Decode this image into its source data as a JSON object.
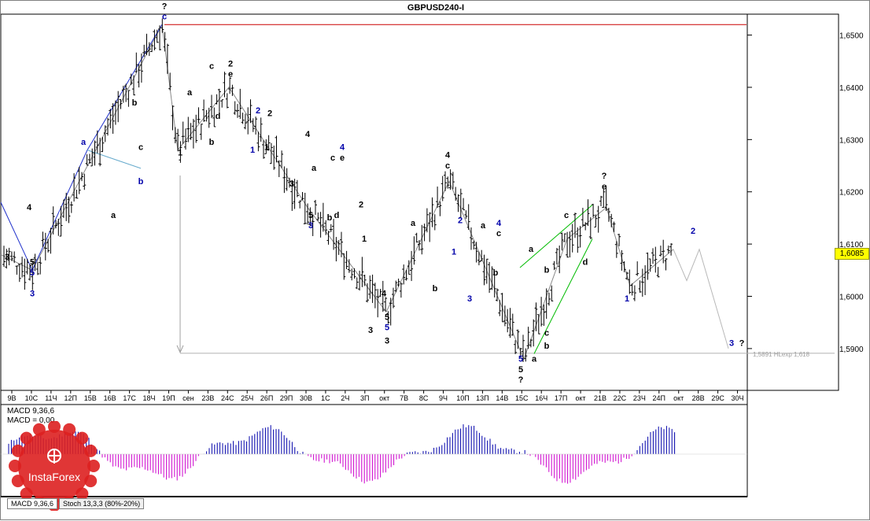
{
  "window": {
    "title": "GBPUSD240-I"
  },
  "current_price": "1,6085",
  "indicators": {
    "macd_line1": "MACD 9,36,6",
    "macd_line2": "MACD = 0,00"
  },
  "tabs": [
    {
      "label": "MACD 9,36,6",
      "active": true
    },
    {
      "label": "Stoch 13,3,3 (80%-20%)",
      "active": false
    }
  ],
  "logo": {
    "text": "InstaForex"
  },
  "colors": {
    "bullish": "#0000aa",
    "bearish": "#cc00cc",
    "resistance": "#cc0000",
    "trend": "#00bb00",
    "accent": "#2233cc"
  },
  "chart_data": {
    "type": "candlestick",
    "title": "GBPUSD240-I",
    "ylim": [
      1.582,
      1.654
    ],
    "yticks": [
      {
        "value": 1.65,
        "label": "1,6500"
      },
      {
        "value": 1.64,
        "label": "1,6400"
      },
      {
        "value": 1.63,
        "label": "1,6300"
      },
      {
        "value": 1.62,
        "label": "1,6200"
      },
      {
        "value": 1.61,
        "label": "1,6100"
      },
      {
        "value": 1.6,
        "label": "1,6000"
      },
      {
        "value": 1.59,
        "label": "1,5900"
      }
    ],
    "xticks": [
      "9В",
      "10С",
      "11Ч",
      "12П",
      "15В",
      "16В",
      "17С",
      "18Ч",
      "19П",
      "сен",
      "23В",
      "24С",
      "25Ч",
      "26П",
      "29П",
      "30В",
      "1С",
      "2Ч",
      "3П",
      "окт",
      "7В",
      "8С",
      "9Ч",
      "10П",
      "13П",
      "14В",
      "15С",
      "16Ч",
      "17П",
      "окт",
      "21В",
      "22С",
      "23Ч",
      "24П",
      "окт",
      "28В",
      "29С",
      "30Ч"
    ],
    "path": [
      [
        0,
        1.608
      ],
      [
        40,
        1.605
      ],
      [
        205,
        1.652
      ],
      [
        225,
        1.628
      ],
      [
        290,
        1.64
      ],
      [
        390,
        1.617
      ],
      [
        490,
        1.597
      ],
      [
        570,
        1.622
      ],
      [
        665,
        1.588
      ],
      [
        720,
        1.611
      ],
      [
        770,
        1.617
      ],
      [
        800,
        1.602
      ],
      [
        855,
        1.609
      ]
    ],
    "close": 1.6085,
    "resistance": {
      "value": 1.652
    },
    "target": {
      "value": 1.5891,
      "label": "1,5891 НLexp 1,618"
    },
    "forecast": [
      1.609,
      1.603,
      1.609,
      1.59
    ],
    "annotations": [
      {
        "text": "?",
        "x": 208,
        "price": 1.655,
        "color": "#000000"
      },
      {
        "text": "c",
        "x": 208,
        "price": 1.653,
        "color": "#0000aa"
      },
      {
        "text": "a",
        "x": 105,
        "price": 1.629,
        "color": "#0000aa"
      },
      {
        "text": "b",
        "x": 178,
        "price": 1.6215,
        "color": "#0000aa"
      },
      {
        "text": "3",
        "x": 40,
        "price": 1.6,
        "color": "#0000aa"
      },
      {
        "text": "5",
        "x": 40,
        "price": 1.604,
        "color": "#0000aa"
      },
      {
        "text": "5",
        "x": 40,
        "price": 1.606,
        "color": "#000000"
      },
      {
        "text": "3",
        "x": 8,
        "price": 1.607,
        "color": "#000000"
      },
      {
        "text": "4",
        "x": 36,
        "price": 1.6165,
        "color": "#000000"
      },
      {
        "text": "a",
        "x": 143,
        "price": 1.615,
        "color": "#000000"
      },
      {
        "text": "b",
        "x": 170,
        "price": 1.6365,
        "color": "#000000"
      },
      {
        "text": "c",
        "x": 178,
        "price": 1.628,
        "color": "#000000"
      },
      {
        "text": "a",
        "x": 240,
        "price": 1.6385,
        "color": "#000000"
      },
      {
        "text": "1",
        "x": 228,
        "price": 1.627,
        "color": "#000000"
      },
      {
        "text": "b",
        "x": 268,
        "price": 1.629,
        "color": "#000000"
      },
      {
        "text": "c",
        "x": 268,
        "price": 1.6435,
        "color": "#000000"
      },
      {
        "text": "d",
        "x": 276,
        "price": 1.634,
        "color": "#000000"
      },
      {
        "text": "e",
        "x": 292,
        "price": 1.642,
        "color": "#000000"
      },
      {
        "text": "2",
        "x": 292,
        "price": 1.644,
        "color": "#000000"
      },
      {
        "text": "1",
        "x": 320,
        "price": 1.6275,
        "color": "#0000aa"
      },
      {
        "text": "2",
        "x": 327,
        "price": 1.635,
        "color": "#0000aa"
      },
      {
        "text": "2",
        "x": 342,
        "price": 1.6345,
        "color": "#000000"
      },
      {
        "text": "1",
        "x": 338,
        "price": 1.628,
        "color": "#000000"
      },
      {
        "text": "3",
        "x": 370,
        "price": 1.621,
        "color": "#000000"
      },
      {
        "text": "4",
        "x": 390,
        "price": 1.6305,
        "color": "#000000"
      },
      {
        "text": "4",
        "x": 434,
        "price": 1.628,
        "color": "#0000aa"
      },
      {
        "text": "c",
        "x": 422,
        "price": 1.626,
        "color": "#000000"
      },
      {
        "text": "e",
        "x": 434,
        "price": 1.626,
        "color": "#000000"
      },
      {
        "text": "a",
        "x": 398,
        "price": 1.624,
        "color": "#000000"
      },
      {
        "text": "5",
        "x": 394,
        "price": 1.615,
        "color": "#000000"
      },
      {
        "text": "3",
        "x": 394,
        "price": 1.613,
        "color": "#0000aa"
      },
      {
        "text": "b",
        "x": 418,
        "price": 1.6145,
        "color": "#000000"
      },
      {
        "text": "d",
        "x": 427,
        "price": 1.615,
        "color": "#000000"
      },
      {
        "text": "2",
        "x": 458,
        "price": 1.617,
        "color": "#000000"
      },
      {
        "text": "1",
        "x": 462,
        "price": 1.6105,
        "color": "#000000"
      },
      {
        "text": "3",
        "x": 470,
        "price": 1.593,
        "color": "#000000"
      },
      {
        "text": "4",
        "x": 487,
        "price": 1.6,
        "color": "#000000"
      },
      {
        "text": "5",
        "x": 491,
        "price": 1.5955,
        "color": "#000000"
      },
      {
        "text": "5",
        "x": 491,
        "price": 1.5935,
        "color": "#0000aa"
      },
      {
        "text": "3",
        "x": 491,
        "price": 1.591,
        "color": "#000000"
      },
      {
        "text": "a",
        "x": 524,
        "price": 1.6135,
        "color": "#000000"
      },
      {
        "text": "b",
        "x": 552,
        "price": 1.601,
        "color": "#000000"
      },
      {
        "text": "4",
        "x": 568,
        "price": 1.6265,
        "color": "#000000"
      },
      {
        "text": "c",
        "x": 568,
        "price": 1.6245,
        "color": "#000000"
      },
      {
        "text": "2",
        "x": 584,
        "price": 1.614,
        "color": "#0000aa"
      },
      {
        "text": "1",
        "x": 576,
        "price": 1.608,
        "color": "#0000aa"
      },
      {
        "text": "3",
        "x": 596,
        "price": 1.599,
        "color": "#0000aa"
      },
      {
        "text": "a",
        "x": 613,
        "price": 1.613,
        "color": "#000000"
      },
      {
        "text": "4",
        "x": 633,
        "price": 1.6135,
        "color": "#0000aa"
      },
      {
        "text": "c",
        "x": 633,
        "price": 1.6115,
        "color": "#000000"
      },
      {
        "text": "b",
        "x": 629,
        "price": 1.604,
        "color": "#000000"
      },
      {
        "text": "5",
        "x": 661,
        "price": 1.5875,
        "color": "#0000aa"
      },
      {
        "text": "5",
        "x": 661,
        "price": 1.5855,
        "color": "#000000"
      },
      {
        "text": "?",
        "x": 661,
        "price": 1.5835,
        "color": "#000000"
      },
      {
        "text": "a",
        "x": 678,
        "price": 1.5875,
        "color": "#000000"
      },
      {
        "text": "a",
        "x": 674,
        "price": 1.6085,
        "color": "#000000"
      },
      {
        "text": "b",
        "x": 694,
        "price": 1.59,
        "color": "#000000"
      },
      {
        "text": "b",
        "x": 694,
        "price": 1.6045,
        "color": "#000000"
      },
      {
        "text": "c",
        "x": 694,
        "price": 1.5925,
        "color": "#000000"
      },
      {
        "text": "c",
        "x": 719,
        "price": 1.615,
        "color": "#000000"
      },
      {
        "text": "d",
        "x": 743,
        "price": 1.606,
        "color": "#000000"
      },
      {
        "text": "?",
        "x": 767,
        "price": 1.6225,
        "color": "#000000"
      },
      {
        "text": "e",
        "x": 767,
        "price": 1.6205,
        "color": "#000000"
      },
      {
        "text": "1",
        "x": 796,
        "price": 1.599,
        "color": "#0000aa"
      },
      {
        "text": "2",
        "x": 880,
        "price": 1.612,
        "color": "#0000aa"
      },
      {
        "text": "3",
        "x": 929,
        "price": 1.5905,
        "color": "#0000aa"
      },
      {
        "text": "?",
        "x": 942,
        "price": 1.5905,
        "color": "#000000"
      }
    ]
  }
}
